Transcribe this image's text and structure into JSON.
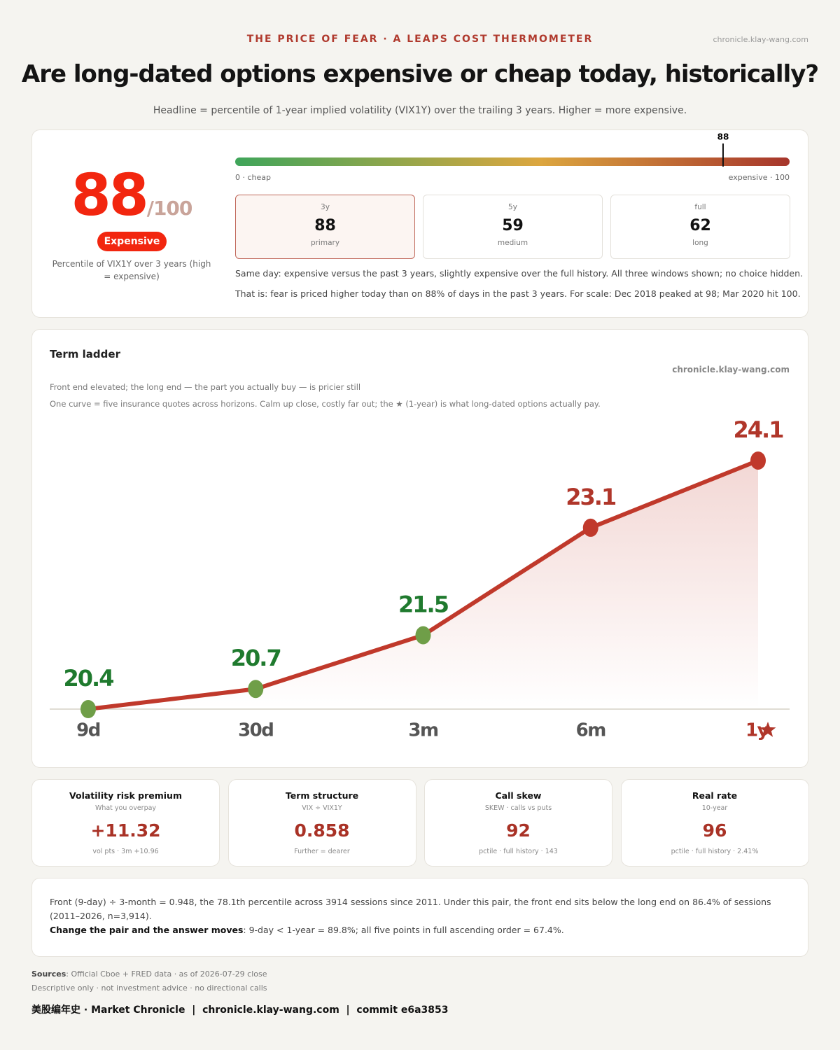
{
  "header": {
    "kicker": "THE PRICE OF FEAR · A LEAPS COST THERMOMETER",
    "site": "chronicle.klay-wang.com",
    "title": "Are long-dated options expensive or cheap today, historically?",
    "subtitle": "Headline = percentile of 1-year implied volatility (VIX1Y) over the trailing 3 years. Higher = more expensive."
  },
  "gauge": {
    "score": 88,
    "score_suffix": "/100",
    "badge": "Expensive",
    "caption": "Percentile of VIX1Y over 3 years (high = expensive)",
    "marker": 88,
    "range": [
      0,
      100
    ],
    "min_label": "0 · cheap",
    "max_label": "expensive · 100",
    "windows": [
      {
        "label": "3y",
        "value": 88,
        "note": "primary"
      },
      {
        "label": "5y",
        "value": 59,
        "note": "medium"
      },
      {
        "label": "full",
        "value": 62,
        "note": "long"
      }
    ],
    "primary_window": 0,
    "notes": [
      "Same day: expensive versus the past 3 years, slightly expensive over the full history. All three windows shown; no choice hidden.",
      "That is: fear is priced higher today than on 88% of days in the past 3 years. For scale: Dec 2018 peaked at 98; Mar 2020 hit 100."
    ]
  },
  "chart_data": {
    "type": "line",
    "title": "Term ladder",
    "source": "chronicle.klay-wang.com",
    "subtitle": "Front end elevated; the long end — the part you actually buy — is pricier still",
    "description": "One curve = five insurance quotes across horizons. Calm up close, costly far out; the ★ (1-year) is what long-dated options actually pay.",
    "categories": [
      "9d",
      "30d",
      "3m",
      "6m",
      "1y"
    ],
    "values": [
      20.4,
      20.7,
      21.5,
      23.1,
      24.1
    ],
    "ylim": [
      20.4,
      24.6
    ],
    "color": "#c0392b",
    "point_colors": [
      "#6f9e48",
      "#6f9e48",
      "#6f9e48",
      "#c0392b",
      "#c0392b"
    ],
    "label_colors": [
      "#1f7a2e",
      "#1f7a2e",
      "#1f7a2e",
      "#b0362a",
      "#b0362a"
    ]
  },
  "metrics": [
    {
      "title": "Volatility risk premium",
      "subtitle": "What you overpay",
      "value": "+11.32",
      "note": "vol pts · 3m +10.96"
    },
    {
      "title": "Term structure",
      "subtitle": "VIX ÷ VIX1Y",
      "value": 0.858,
      "note": "Further = dearer"
    },
    {
      "title": "Call skew",
      "subtitle": "SKEW · calls vs puts",
      "value": 92,
      "note": "pctile · full history · 143"
    },
    {
      "title": "Real rate",
      "subtitle": "10-year",
      "value": 96,
      "note": "pctile · full history · 2.41%"
    }
  ],
  "footnote": {
    "text": "Front (9-day) ÷ 3-month = 0.948, the 78.1th percentile across 3914 sessions since 2011. Under this pair, the front end sits below the long end on 86.4% of sessions (2011–2026, n=3,914).",
    "emphasis": "Change the pair and the answer moves",
    "rest": ": 9-day < 1-year = 89.8%; all five points in full ascending order = 67.4%."
  },
  "footer": {
    "sources_label": "Sources",
    "sources": ": Official Cboe + FRED data · as of 2026-07-29 close",
    "disclaimer": "Descriptive only · not investment advice · no directional calls",
    "brand": "美股编年史 · Market Chronicle  |  chronicle.klay-wang.com  |  commit e6a3853"
  }
}
